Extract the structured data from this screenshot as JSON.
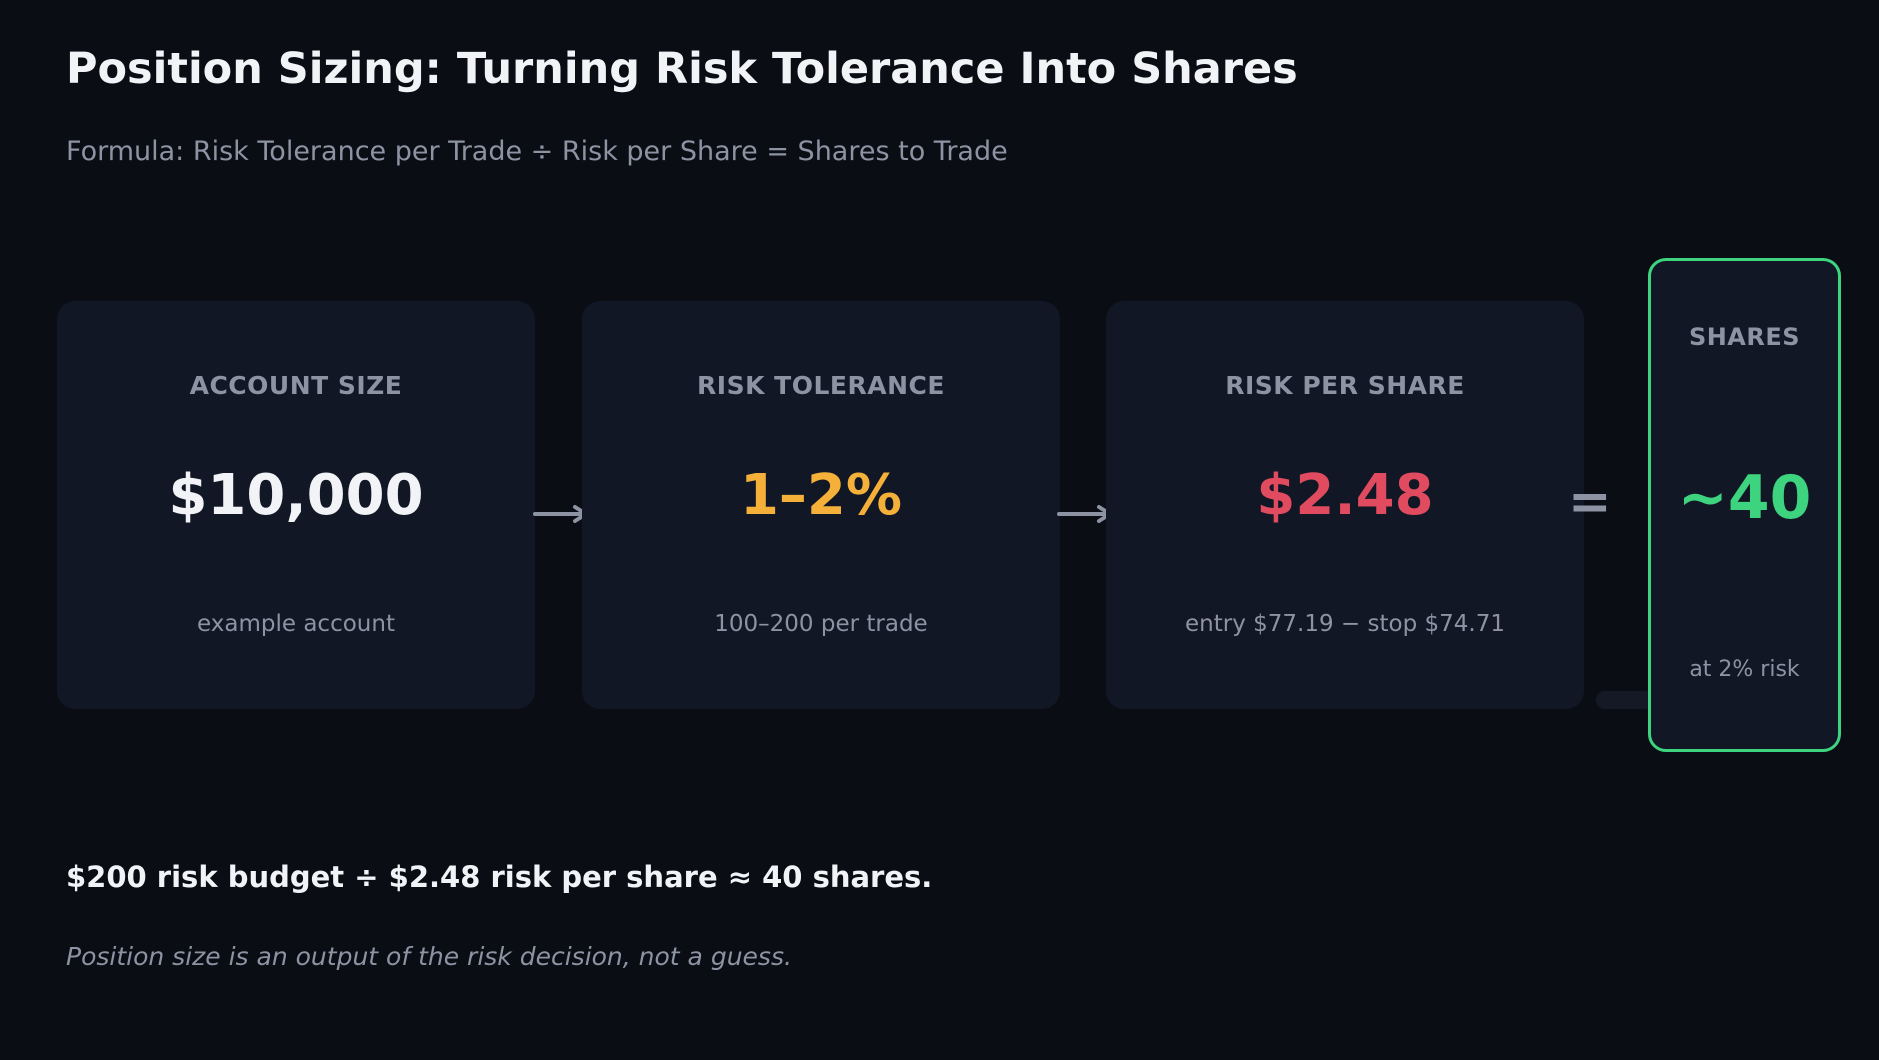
{
  "title": "Position Sizing: Turning Risk Tolerance Into Shares",
  "subtitle": "Formula: Risk Tolerance per Trade ÷ Risk per Share = Shares to Trade",
  "cards": [
    {
      "label": "ACCOUNT SIZE",
      "value": "$10,000",
      "note": "example account",
      "value_color": "#f1f3f7"
    },
    {
      "label": "RISK TOLERANCE",
      "value": "1–2%",
      "note": "100–200 per trade",
      "value_color": "#f5b03a"
    },
    {
      "label": "RISK PER SHARE",
      "value": "$2.48",
      "note": "entry $77.19 − stop $74.71",
      "value_color": "#e04b5f"
    }
  ],
  "result": {
    "label": "SHARES",
    "value": "~40",
    "note": "at 2% risk",
    "value_color": "#3ed47f"
  },
  "operators": {
    "equals": "="
  },
  "summary": "$200 risk budget ÷ $2.48 risk per share ≈ 40 shares.",
  "takeaway": "Position size is an output of the risk decision, not a guess.",
  "colors": {
    "background": "#0a0d14",
    "card": "#121725",
    "muted": "#8d93a3",
    "accent_green": "#3ed47f"
  }
}
